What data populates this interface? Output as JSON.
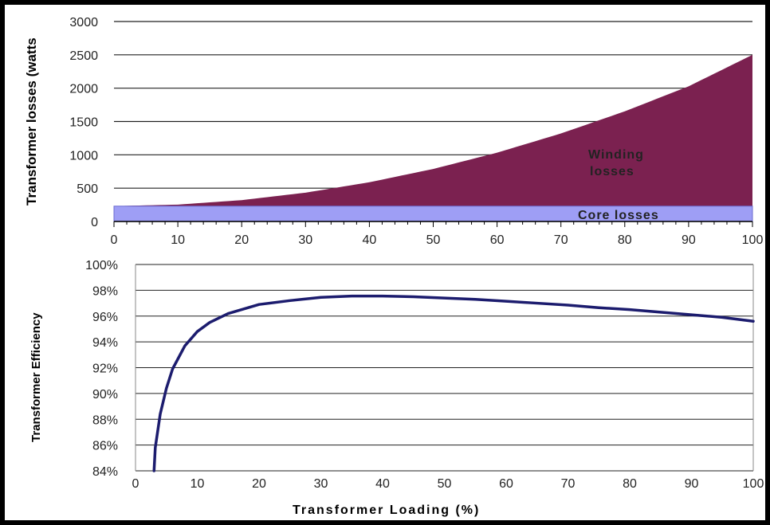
{
  "chart_data": [
    {
      "type": "area",
      "xlabel": "",
      "ylabel": "Transformer losses (watts",
      "xlim": [
        0,
        100
      ],
      "ylim": [
        0,
        3000
      ],
      "x_ticks": [
        "0",
        "10",
        "20",
        "30",
        "40",
        "50",
        "60",
        "70",
        "80",
        "90",
        "100"
      ],
      "y_ticks": [
        "0",
        "500",
        "1000",
        "1500",
        "2000",
        "2500",
        "3000"
      ],
      "grid": true,
      "series": [
        {
          "name": "Core losses",
          "color": "#9e9ef5",
          "x": [
            0,
            100
          ],
          "values": [
            230,
            230
          ]
        },
        {
          "name": "Winding losses",
          "color": "#7b2150",
          "x": [
            0,
            10,
            20,
            30,
            40,
            50,
            60,
            70,
            80,
            90,
            100
          ],
          "values": [
            230,
            253,
            320,
            432,
            588,
            788,
            1032,
            1320,
            1652,
            2028,
            2500
          ]
        }
      ],
      "annotations": {
        "winding_line1": "Winding",
        "winding_line2": "losses",
        "core": "Core losses"
      }
    },
    {
      "type": "line",
      "xlabel": "Transformer Loading (%)",
      "ylabel": "Transformer Efficiency",
      "xlim": [
        0,
        100
      ],
      "ylim": [
        84,
        100
      ],
      "x_ticks": [
        "0",
        "10",
        "20",
        "30",
        "40",
        "50",
        "60",
        "70",
        "80",
        "90",
        "100"
      ],
      "y_ticks": [
        "84%",
        "86%",
        "88%",
        "90%",
        "92%",
        "94%",
        "96%",
        "98%",
        "100%"
      ],
      "grid": true,
      "series": [
        {
          "color": "#1c1c6e",
          "x": [
            3,
            3.2,
            4,
            5,
            6,
            8,
            10,
            12,
            15,
            20,
            25,
            30,
            35,
            40,
            45,
            50,
            55,
            60,
            65,
            70,
            75,
            80,
            85,
            90,
            95,
            100
          ],
          "values": [
            84.0,
            85.8,
            88.4,
            90.4,
            91.9,
            93.7,
            94.8,
            95.5,
            96.2,
            96.9,
            97.2,
            97.45,
            97.55,
            97.55,
            97.5,
            97.4,
            97.3,
            97.15,
            97.0,
            96.85,
            96.65,
            96.5,
            96.3,
            96.1,
            95.9,
            95.6
          ]
        }
      ]
    }
  ]
}
